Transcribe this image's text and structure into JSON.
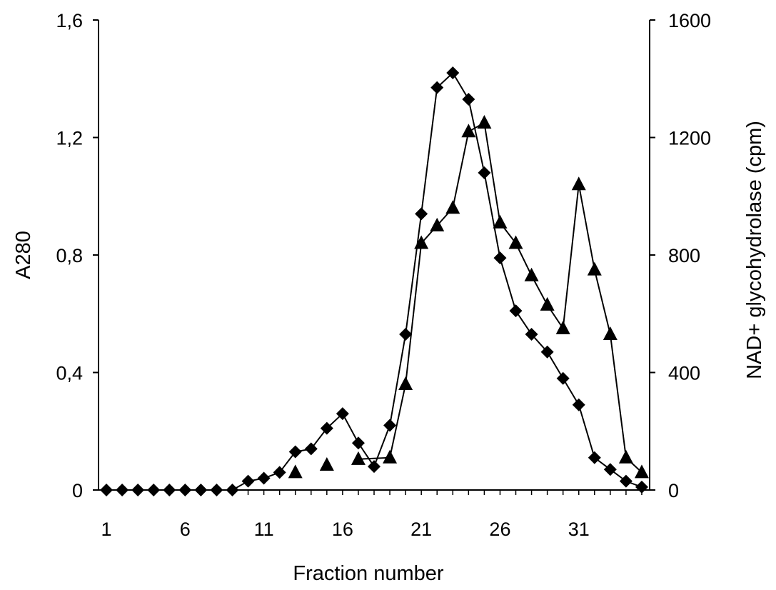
{
  "chart_data": {
    "type": "line",
    "xlabel": "Fraction number",
    "ylabel_left": "A280",
    "ylabel_right": "NAD+ glycohydrolase (cpm)",
    "xlim": [
      0.5,
      35.5
    ],
    "x_ticks": [
      1,
      6,
      11,
      16,
      21,
      26,
      31
    ],
    "ylim_left": [
      0,
      1.6
    ],
    "ylim_right": [
      0,
      1600
    ],
    "y_ticks_left": [
      "0",
      "0,4",
      "0,8",
      "1,2",
      "1,6"
    ],
    "y_ticks_right": [
      "0",
      "400",
      "800",
      "1200",
      "1600"
    ],
    "series": [
      {
        "marker": "diamond",
        "axis": "left",
        "points": [
          [
            1,
            0
          ],
          [
            2,
            0
          ],
          [
            3,
            0
          ],
          [
            4,
            0
          ],
          [
            5,
            0
          ],
          [
            6,
            0
          ],
          [
            7,
            0
          ],
          [
            8,
            0
          ],
          [
            9,
            0
          ],
          [
            10,
            0.03
          ],
          [
            11,
            0.04
          ],
          [
            12,
            0.06
          ],
          [
            13,
            0.13
          ],
          [
            14,
            0.14
          ],
          [
            15,
            0.21
          ],
          [
            16,
            0.26
          ],
          [
            17,
            0.16
          ],
          [
            18,
            0.08
          ],
          [
            19,
            0.22
          ],
          [
            20,
            0.53
          ],
          [
            21,
            0.94
          ],
          [
            22,
            1.37
          ],
          [
            23,
            1.42
          ],
          [
            24,
            1.33
          ],
          [
            25,
            1.08
          ],
          [
            26,
            0.79
          ],
          [
            27,
            0.61
          ],
          [
            28,
            0.53
          ],
          [
            29,
            0.47
          ],
          [
            30,
            0.38
          ],
          [
            31,
            0.29
          ],
          [
            32,
            0.11
          ],
          [
            33,
            0.07
          ],
          [
            34,
            0.03
          ],
          [
            35,
            0.01
          ]
        ]
      },
      {
        "marker": "triangle",
        "axis": "right",
        "points": [
          [
            13,
            60
          ],
          [
            15,
            85
          ],
          [
            17,
            105
          ],
          [
            19,
            110
          ],
          [
            20,
            360
          ],
          [
            21,
            840
          ],
          [
            22,
            900
          ],
          [
            23,
            960
          ],
          [
            24,
            1220
          ],
          [
            25,
            1250
          ],
          [
            26,
            910
          ],
          [
            27,
            840
          ],
          [
            28,
            730
          ],
          [
            29,
            630
          ],
          [
            30,
            550
          ],
          [
            31,
            1040
          ],
          [
            32,
            750
          ],
          [
            33,
            530
          ],
          [
            34,
            110
          ],
          [
            35,
            60
          ]
        ],
        "segments": [
          [
            17,
            18,
            19,
            20,
            21,
            22,
            23,
            24,
            25,
            26,
            27,
            28,
            29,
            30,
            31,
            32,
            33,
            34,
            35
          ]
        ]
      }
    ]
  }
}
